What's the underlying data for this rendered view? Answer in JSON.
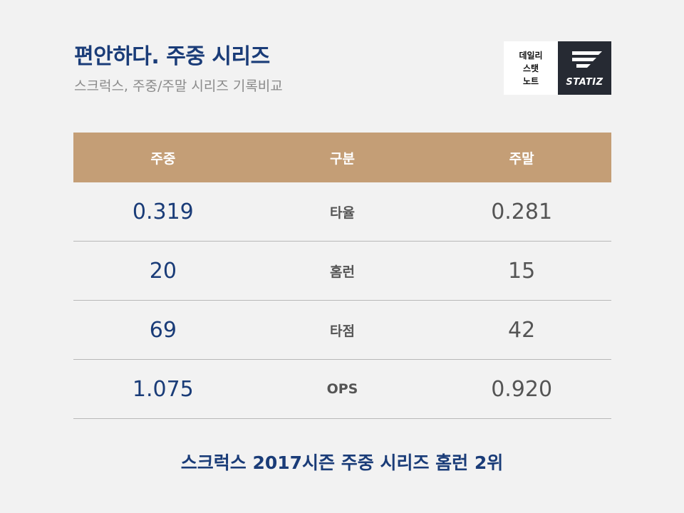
{
  "header": {
    "title": "편안하다. 주중 시리즈",
    "subtitle": "스크럭스, 주중/주말 시리즈 기록비교"
  },
  "logo": {
    "left_lines": [
      "데일리",
      "스탯",
      "노트"
    ],
    "brand": "STATIZ",
    "colors": {
      "left_bg": "#ffffff",
      "right_bg": "#262a33"
    }
  },
  "table": {
    "headers": [
      "주중",
      "구분",
      "주말"
    ],
    "rows": [
      {
        "weekday": "0.319",
        "category": "타율",
        "weekend": "0.281"
      },
      {
        "weekday": "20",
        "category": "홈런",
        "weekend": "15"
      },
      {
        "weekday": "69",
        "category": "타점",
        "weekend": "42"
      },
      {
        "weekday": "1.075",
        "category": "OPS",
        "weekend": "0.920"
      }
    ]
  },
  "footer": {
    "text": "스크럭스 2017시즌 주중 시리즈 홈런 2위"
  },
  "colors": {
    "accent": "#1a3c78",
    "header_bg": "#c49e76",
    "page_bg": "#f2f2f2",
    "muted_text": "#555555"
  }
}
